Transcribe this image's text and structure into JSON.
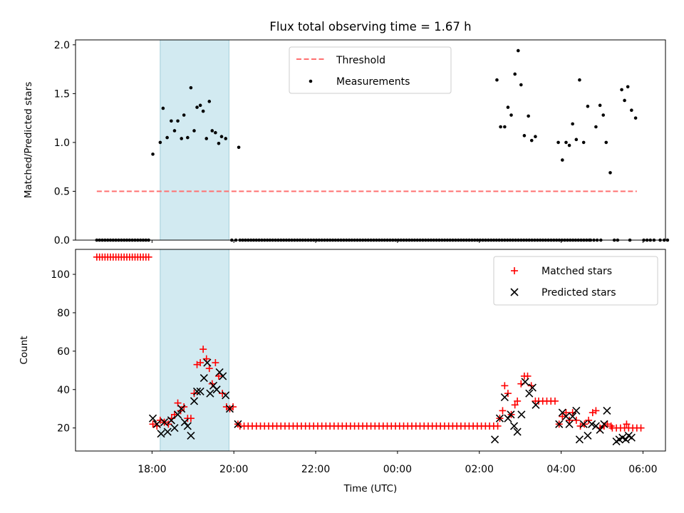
{
  "chart_data": {
    "type": "scatter",
    "title": "Flux total observing time = 1.67 h",
    "xlabel": "Time (UTC)",
    "x_ticks": [
      "18:00",
      "20:00",
      "22:00",
      "00:00",
      "02:00",
      "04:00",
      "06:00"
    ],
    "x_tick_hours": [
      18,
      20,
      22,
      24,
      26,
      28,
      30
    ],
    "xlim_hours": [
      16.13,
      30.55
    ],
    "shaded_span_hours": [
      18.2,
      19.88
    ],
    "colors": {
      "shade": "#add8e6",
      "threshold": "#ff7070",
      "matched": "#ff0000",
      "predicted": "#000000",
      "measure": "#000000"
    },
    "ratio_panel": {
      "ylabel": "Matched/Predicted stars",
      "ylim": [
        0,
        2.05
      ],
      "y_ticks": [
        "0.0",
        "0.5",
        "1.0",
        "1.5",
        "2.0"
      ],
      "threshold": {
        "label": "Threshold",
        "value": 0.5,
        "x_range_hours": [
          16.65,
          29.85
        ]
      },
      "measurements_label": "Measurements",
      "legend_position": "top-center",
      "zero_runs": [
        [
          16.65,
          17.98,
          0.0667
        ],
        [
          19.95,
          20.05,
          0.1
        ],
        [
          20.15,
          28.7,
          0.0667
        ]
      ],
      "measurements": [
        [
          18.02,
          0.88
        ],
        [
          18.2,
          1.0
        ],
        [
          18.27,
          1.35
        ],
        [
          18.37,
          1.05
        ],
        [
          18.47,
          1.22
        ],
        [
          18.55,
          1.12
        ],
        [
          18.63,
          1.22
        ],
        [
          18.72,
          1.04
        ],
        [
          18.78,
          1.28
        ],
        [
          18.87,
          1.05
        ],
        [
          18.95,
          1.56
        ],
        [
          19.03,
          1.12
        ],
        [
          19.1,
          1.36
        ],
        [
          19.18,
          1.38
        ],
        [
          19.25,
          1.32
        ],
        [
          19.33,
          1.04
        ],
        [
          19.4,
          1.42
        ],
        [
          19.47,
          1.12
        ],
        [
          19.55,
          1.1
        ],
        [
          19.63,
          0.99
        ],
        [
          19.7,
          1.06
        ],
        [
          19.8,
          1.04
        ],
        [
          20.12,
          0.95
        ],
        [
          26.43,
          1.64
        ],
        [
          26.52,
          1.16
        ],
        [
          26.62,
          1.16
        ],
        [
          26.7,
          1.36
        ],
        [
          26.78,
          1.28
        ],
        [
          26.87,
          1.7
        ],
        [
          26.95,
          1.94
        ],
        [
          27.02,
          1.59
        ],
        [
          27.1,
          1.07
        ],
        [
          27.2,
          1.27
        ],
        [
          27.28,
          1.02
        ],
        [
          27.37,
          1.06
        ],
        [
          27.93,
          1.0
        ],
        [
          28.03,
          0.82
        ],
        [
          28.12,
          1.0
        ],
        [
          28.2,
          0.97
        ],
        [
          28.28,
          1.19
        ],
        [
          28.37,
          1.03
        ],
        [
          28.45,
          1.64
        ],
        [
          28.55,
          1.0
        ],
        [
          28.65,
          1.37
        ],
        [
          28.85,
          1.16
        ],
        [
          28.95,
          1.38
        ],
        [
          29.03,
          1.28
        ],
        [
          29.1,
          1.0
        ],
        [
          29.2,
          0.69
        ],
        [
          29.48,
          1.54
        ],
        [
          29.55,
          1.43
        ],
        [
          29.63,
          1.57
        ],
        [
          29.72,
          1.33
        ],
        [
          29.82,
          1.25
        ]
      ],
      "zero_points": [
        28.72,
        28.8,
        28.88,
        28.97,
        29.3,
        29.38,
        29.68,
        30.02,
        30.1,
        30.18,
        30.27,
        30.42,
        30.52,
        30.6
      ]
    },
    "count_panel": {
      "ylabel": "Count",
      "ylim": [
        8,
        113
      ],
      "y_ticks": [
        "20",
        "40",
        "60",
        "80",
        "100"
      ],
      "y_tick_values": [
        20,
        40,
        60,
        80,
        100
      ],
      "legend_position": "top-right",
      "series": [
        {
          "name": "Matched stars",
          "marker": "plus",
          "runs": [
            [
              16.65,
              17.98,
              0.0667,
              109
            ],
            [
              20.15,
              26.38,
              0.1,
              21
            ],
            [
              29.25,
              30.0,
              0.1,
              20
            ]
          ],
          "points": [
            [
              18.02,
              22
            ],
            [
              18.12,
              21
            ],
            [
              18.2,
              24
            ],
            [
              18.3,
              23
            ],
            [
              18.4,
              22
            ],
            [
              18.48,
              25
            ],
            [
              18.55,
              27
            ],
            [
              18.63,
              33
            ],
            [
              18.7,
              29
            ],
            [
              18.78,
              31
            ],
            [
              18.87,
              25
            ],
            [
              18.95,
              25
            ],
            [
              19.03,
              38
            ],
            [
              19.1,
              53
            ],
            [
              19.18,
              54
            ],
            [
              19.25,
              61
            ],
            [
              19.33,
              56
            ],
            [
              19.4,
              51
            ],
            [
              19.47,
              43
            ],
            [
              19.55,
              54
            ],
            [
              19.63,
              47
            ],
            [
              19.72,
              38
            ],
            [
              19.82,
              31
            ],
            [
              19.9,
              30
            ],
            [
              19.98,
              31
            ],
            [
              20.1,
              22
            ],
            [
              26.45,
              21
            ],
            [
              26.5,
              25
            ],
            [
              26.57,
              29
            ],
            [
              26.62,
              42
            ],
            [
              26.7,
              38
            ],
            [
              26.78,
              27
            ],
            [
              26.87,
              32
            ],
            [
              26.93,
              34
            ],
            [
              27.02,
              43
            ],
            [
              27.1,
              47
            ],
            [
              27.18,
              47
            ],
            [
              27.27,
              42
            ],
            [
              27.37,
              34
            ],
            [
              27.45,
              34
            ],
            [
              27.55,
              34
            ],
            [
              27.65,
              34
            ],
            [
              27.75,
              34
            ],
            [
              27.85,
              34
            ],
            [
              27.95,
              22
            ],
            [
              28.03,
              26
            ],
            [
              28.12,
              28
            ],
            [
              28.2,
              24
            ],
            [
              28.28,
              28
            ],
            [
              28.37,
              24
            ],
            [
              28.47,
              21
            ],
            [
              28.57,
              22
            ],
            [
              28.67,
              24
            ],
            [
              28.77,
              28
            ],
            [
              28.85,
              29
            ],
            [
              28.95,
              20
            ],
            [
              29.05,
              21
            ],
            [
              29.13,
              22
            ],
            [
              29.22,
              21
            ],
            [
              29.6,
              22
            ]
          ]
        },
        {
          "name": "Predicted stars",
          "marker": "x",
          "points": [
            [
              18.02,
              25
            ],
            [
              18.12,
              22
            ],
            [
              18.22,
              17
            ],
            [
              18.3,
              23
            ],
            [
              18.38,
              18
            ],
            [
              18.47,
              24
            ],
            [
              18.55,
              20
            ],
            [
              18.63,
              27
            ],
            [
              18.72,
              30
            ],
            [
              18.8,
              23
            ],
            [
              18.87,
              21
            ],
            [
              18.95,
              16
            ],
            [
              19.03,
              34
            ],
            [
              19.1,
              39
            ],
            [
              19.18,
              39
            ],
            [
              19.27,
              46
            ],
            [
              19.35,
              54
            ],
            [
              19.42,
              38
            ],
            [
              19.5,
              42
            ],
            [
              19.58,
              40
            ],
            [
              19.65,
              49
            ],
            [
              19.73,
              47
            ],
            [
              19.8,
              37
            ],
            [
              19.9,
              30
            ],
            [
              20.1,
              22
            ],
            [
              26.38,
              14
            ],
            [
              26.5,
              25
            ],
            [
              26.62,
              36
            ],
            [
              26.7,
              25
            ],
            [
              26.77,
              27
            ],
            [
              26.85,
              21
            ],
            [
              26.93,
              18
            ],
            [
              27.03,
              27
            ],
            [
              27.12,
              44
            ],
            [
              27.22,
              38
            ],
            [
              27.3,
              41
            ],
            [
              27.38,
              32
            ],
            [
              27.95,
              22
            ],
            [
              28.03,
              28
            ],
            [
              28.12,
              26
            ],
            [
              28.2,
              22
            ],
            [
              28.28,
              26
            ],
            [
              28.37,
              29
            ],
            [
              28.45,
              14
            ],
            [
              28.55,
              22
            ],
            [
              28.65,
              16
            ],
            [
              28.75,
              22
            ],
            [
              28.85,
              21
            ],
            [
              28.95,
              19
            ],
            [
              29.05,
              22
            ],
            [
              29.12,
              29
            ],
            [
              29.35,
              13
            ],
            [
              29.42,
              14
            ],
            [
              29.5,
              15
            ],
            [
              29.58,
              14
            ],
            [
              29.65,
              16
            ],
            [
              29.72,
              15
            ]
          ]
        }
      ]
    }
  }
}
